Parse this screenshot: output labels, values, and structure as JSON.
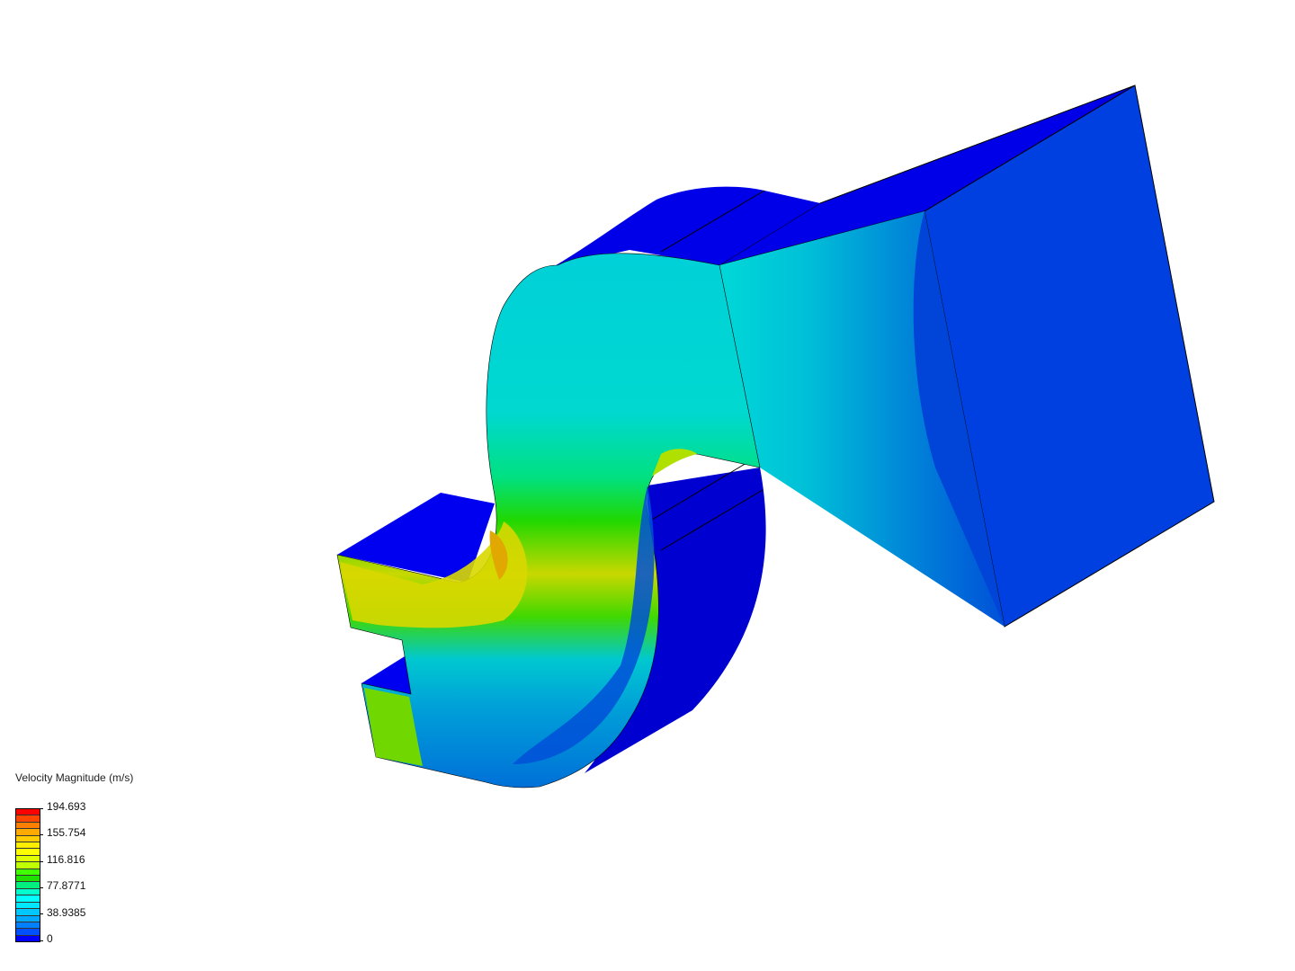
{
  "legend": {
    "title": "Velocity Magnitude (m/s)",
    "max": 194.693,
    "min": 0,
    "tick_labels": [
      "194.693",
      "155.754",
      "116.816",
      "77.8771",
      "38.9385",
      "0"
    ],
    "band_colors": [
      "#ff0000",
      "#ff4500",
      "#ff7f00",
      "#ffaa00",
      "#ffcc00",
      "#ffee00",
      "#ffff00",
      "#e0ff00",
      "#c0ff00",
      "#40ff00",
      "#20e000",
      "#00f080",
      "#00ffcc",
      "#00ffff",
      "#00e8ff",
      "#00c8ff",
      "#00a8ff",
      "#0080ff",
      "#0050ff",
      "#0000ff"
    ]
  },
  "colors": {
    "low": "#0000e8",
    "outlet_face": "#0040e0",
    "high": "#ff0000"
  }
}
